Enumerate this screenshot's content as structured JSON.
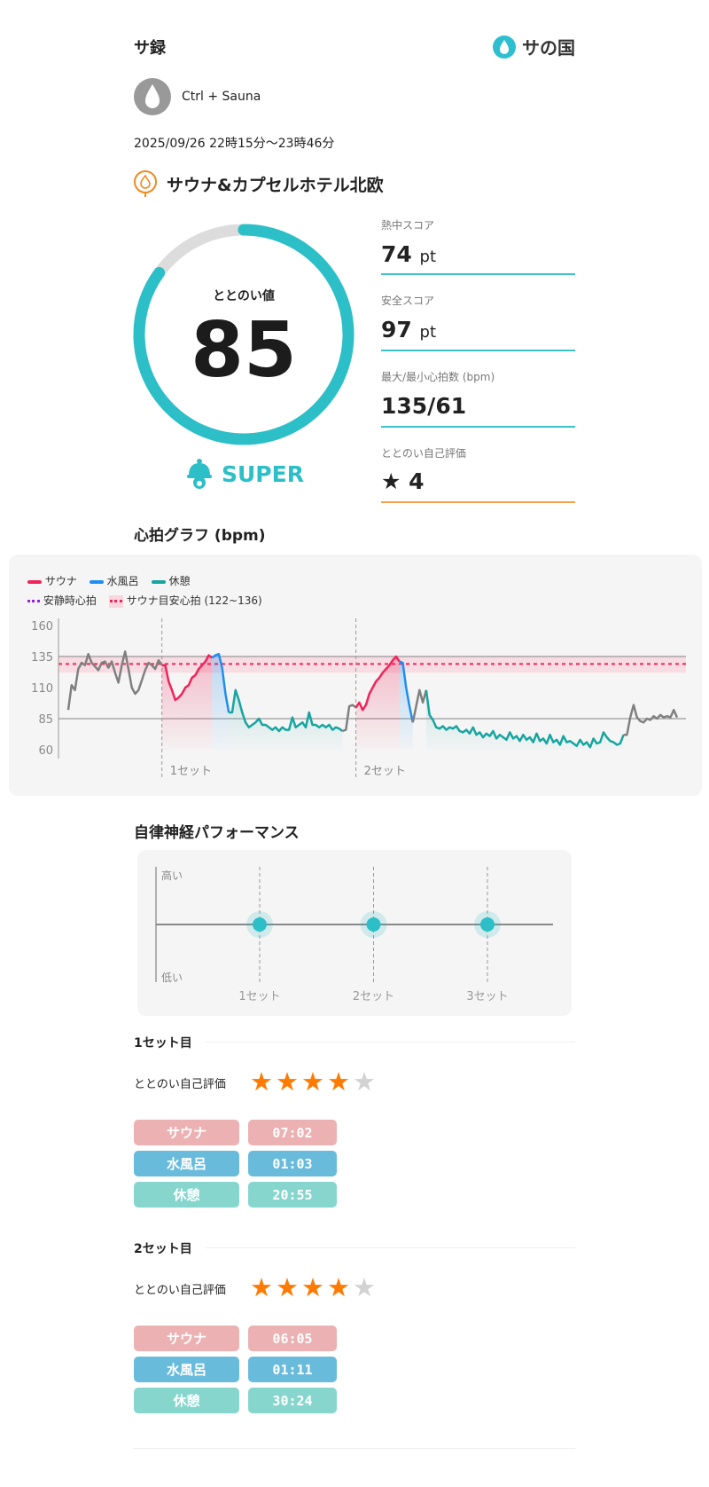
{
  "header": {
    "title": "サ録",
    "logo_text": "サの国",
    "logo_color": "#2dbfd0"
  },
  "user": {
    "name": "Ctrl + Sauna",
    "avatar_icon": "droplet-icon"
  },
  "session": {
    "datetime": "2025/09/26 22時15分〜23時46分",
    "facility": "サウナ&カプセルホテル北欧",
    "facility_icon": "flame-pin-icon"
  },
  "score": {
    "label": "ととのい値",
    "value": "85",
    "progress": 0.85,
    "rank": "SUPER",
    "accent": "#2cbfc7"
  },
  "stats": [
    {
      "label": "熱中スコア",
      "value": "74",
      "unit": "pt"
    },
    {
      "label": "安全スコア",
      "value": "97",
      "unit": "pt"
    },
    {
      "label": "最大/最小心拍数 (bpm)",
      "value": "135/61",
      "unit": ""
    },
    {
      "label": "ととのい自己評価",
      "value": "4",
      "unit": "",
      "icon": "star-icon"
    }
  ],
  "hr_title": "心拍グラフ (bpm)",
  "chart_data": {
    "type": "line",
    "title": "",
    "legend": [
      {
        "label": "サウナ",
        "color": "#f0245a"
      },
      {
        "label": "水風呂",
        "color": "#1e8ef0"
      },
      {
        "label": "休憩",
        "color": "#17a5a0"
      },
      {
        "label": "安静時心拍",
        "color": "#9a1ee6"
      },
      {
        "label": "サウナ目安心拍 (122~136)",
        "color": "#f0245a"
      }
    ],
    "y_ticks": [
      "160",
      "135",
      "110",
      "85",
      "60"
    ],
    "ylim": [
      60,
      160
    ],
    "target_range": [
      122,
      136
    ],
    "reference_lines": [
      135,
      85
    ],
    "set_labels": [
      "1セット",
      "2セット"
    ],
    "segments": [
      {
        "phase": "pre",
        "color": "#808080",
        "values": [
          92,
          112,
          108,
          125,
          130,
          128,
          137,
          130,
          127,
          124,
          130,
          131,
          126,
          131,
          122,
          114,
          128,
          139,
          125,
          110,
          105,
          108,
          116,
          124,
          130,
          128,
          125,
          132,
          128
        ]
      },
      {
        "phase": "sauna",
        "color": "#f0245a",
        "values": [
          128,
          115,
          108,
          100,
          102,
          105,
          110,
          112,
          118,
          120,
          125,
          128,
          131,
          136,
          134
        ]
      },
      {
        "phase": "water",
        "color": "#1e8ef0",
        "values": [
          136,
          137,
          126,
          105,
          90
        ]
      },
      {
        "phase": "rest",
        "color": "#17a5a0",
        "values": [
          90,
          108,
          100,
          90,
          82,
          78,
          80,
          82,
          85,
          80,
          80,
          78,
          76,
          78,
          75,
          78,
          76,
          76,
          86,
          78,
          80,
          82,
          78,
          90,
          80,
          80,
          78,
          80,
          78,
          80,
          76,
          78,
          77,
          75
        ]
      },
      {
        "phase": "pre",
        "color": "#808080",
        "values": [
          76,
          95,
          96,
          94
        ]
      },
      {
        "phase": "sauna",
        "color": "#f0245a",
        "values": [
          98,
          92,
          96,
          105,
          110,
          115,
          118,
          122,
          125,
          128,
          132,
          135,
          131
        ]
      },
      {
        "phase": "water",
        "color": "#1e8ef0",
        "values": [
          130,
          110,
          95,
          82
        ]
      },
      {
        "phase": "pre",
        "color": "#808080",
        "values": [
          95,
          108,
          98,
          108
        ]
      },
      {
        "phase": "rest",
        "color": "#17a5a0",
        "values": [
          88,
          84,
          78,
          77,
          79,
          76,
          78,
          77,
          79,
          75,
          74,
          76,
          73,
          78,
          72,
          74,
          70,
          73,
          71,
          75,
          69,
          72,
          70,
          68,
          74,
          69,
          71,
          67,
          72,
          68,
          70,
          66,
          73,
          67,
          69,
          65,
          72,
          66,
          68,
          64,
          71,
          66,
          67,
          65,
          63,
          68,
          64,
          66,
          62,
          69,
          65,
          66,
          74,
          70,
          67,
          66,
          64,
          65,
          72
        ]
      },
      {
        "phase": "post",
        "color": "#808080",
        "values": [
          72,
          86,
          96,
          86,
          83,
          82,
          85,
          84,
          87,
          85,
          88,
          86,
          87,
          86,
          92,
          86
        ]
      }
    ]
  },
  "ans": {
    "title": "自律神経パフォーマンス",
    "high": "高い",
    "low": "低い",
    "sets": [
      "1セット",
      "2セット",
      "3セット"
    ],
    "values": [
      0,
      0,
      0
    ],
    "range": [
      -1,
      1
    ]
  },
  "sets": [
    {
      "title": "1セット目",
      "rating_label": "ととのい自己評価",
      "rating": 4,
      "max": 5,
      "rows": [
        {
          "label": "サウナ",
          "time": "07:02"
        },
        {
          "label": "水風呂",
          "time": "01:03"
        },
        {
          "label": "休憩",
          "time": "20:55"
        }
      ]
    },
    {
      "title": "2セット目",
      "rating_label": "ととのい自己評価",
      "rating": 4,
      "max": 5,
      "rows": [
        {
          "label": "サウナ",
          "time": "06:05"
        },
        {
          "label": "水風呂",
          "time": "01:11"
        },
        {
          "label": "休憩",
          "time": "30:24"
        }
      ]
    }
  ]
}
